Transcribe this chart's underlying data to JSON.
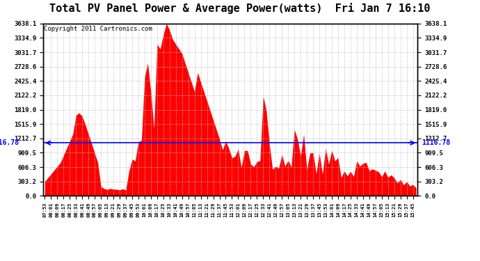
{
  "title": "Total PV Panel Power & Average Power(watts)  Fri Jan 7 16:10",
  "copyright": "Copyright 2011 Cartronics.com",
  "avg_power": 1116.78,
  "ymax": 3638.1,
  "yticks": [
    0.0,
    303.2,
    606.3,
    909.5,
    1212.7,
    1515.9,
    1819.0,
    2122.2,
    2425.4,
    2728.6,
    3031.7,
    3334.9,
    3638.1
  ],
  "fill_color": "#FF0000",
  "line_color": "#0000FF",
  "grid_color": "#BBBBBB",
  "background_color": "#FFFFFF",
  "title_fontsize": 11,
  "avg_label_fontsize": 7,
  "copyright_fontsize": 6.5
}
